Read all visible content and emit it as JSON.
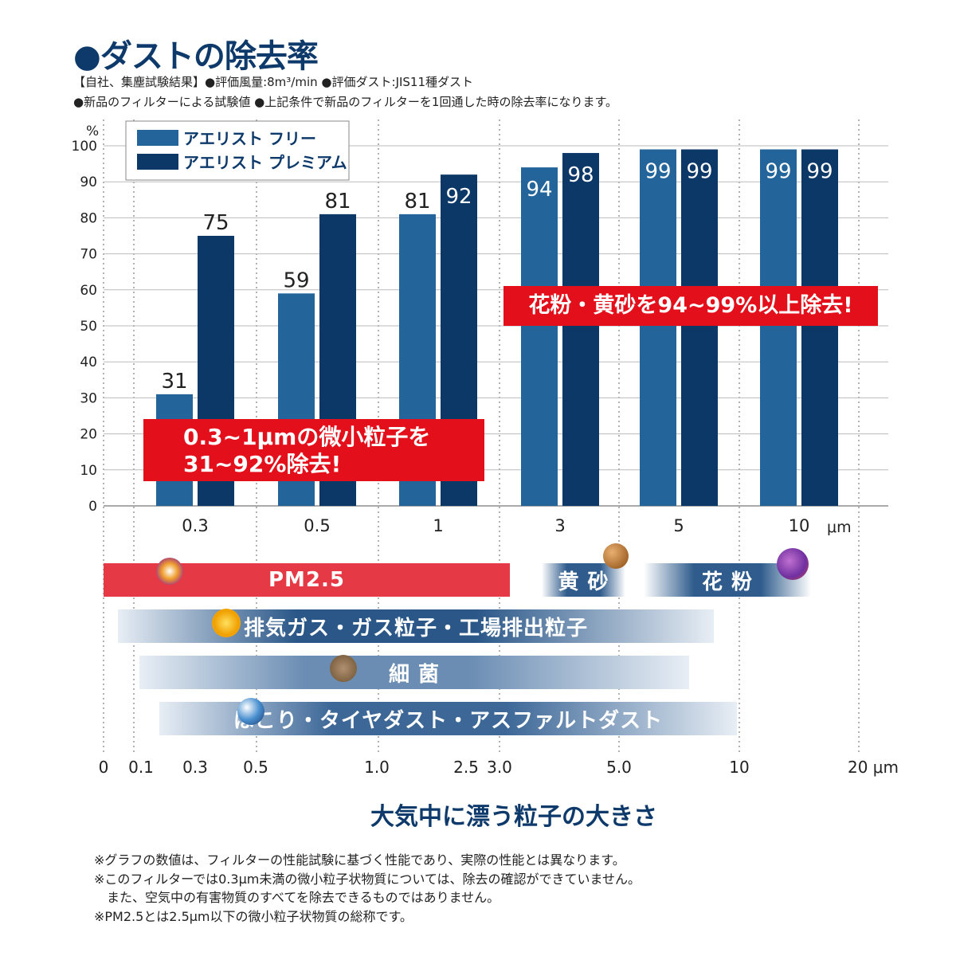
{
  "title": "●ダストの除去率",
  "notes": [
    "【自社、集塵試験結果】●評価風量:8m³/min ●評価ダスト:JIS11種ダスト",
    "●新品のフィルターによる試験値 ●上記条件で新品のフィルターを1回通した時の除去率になります。"
  ],
  "chart_data": {
    "type": "bar",
    "ylabel": "%",
    "ylim": [
      0,
      100
    ],
    "yticks": [
      0,
      10,
      20,
      30,
      40,
      50,
      60,
      70,
      80,
      90,
      100
    ],
    "categories": [
      "0.3",
      "0.5",
      "1",
      "3",
      "5",
      "10"
    ],
    "xunit": "μm",
    "legend_position": "top-left",
    "grid": true,
    "series": [
      {
        "name": "アエリスト フリー",
        "color": "#23649a",
        "values": [
          31,
          59,
          81,
          94,
          99,
          99
        ]
      },
      {
        "name": "アエリスト プレミアム",
        "color": "#0c3868",
        "values": [
          75,
          81,
          92,
          98,
          99,
          99
        ]
      }
    ]
  },
  "callouts": {
    "small_line1": "0.3~1μmの微小粒子を",
    "small_line2": "31~92%除去!",
    "large": "花粉・黄砂を94~99%以上除去!"
  },
  "particle_scale": {
    "ticks": [
      "0",
      "0.1",
      "0.3",
      "0.5",
      "1.0",
      "2.5",
      "3.0",
      "5.0",
      "10",
      "20 μm"
    ],
    "bands": {
      "pm25": "PM2.5",
      "kosa": "黄 砂",
      "kafun": "花 粉",
      "exhaust": "排気ガス・ガス粒子・工場排出粒子",
      "bacteria": "細 菌",
      "dust": "ほこり・タイヤダスト・アスファルトダスト"
    },
    "title": "大気中に漂う粒子の大きさ"
  },
  "footnotes": [
    "※グラフの数値は、フィルターの性能試験に基づく性能であり、実際の性能とは異なります。",
    "※このフィルターでは0.3μm未満の微小粒子状物質については、除去の確認ができていません。",
    "　また、空気中の有害物質のすべてを除去できるものではありません。",
    "※PM2.5とは2.5μm以下の微小粒子状物質の総称です。"
  ]
}
